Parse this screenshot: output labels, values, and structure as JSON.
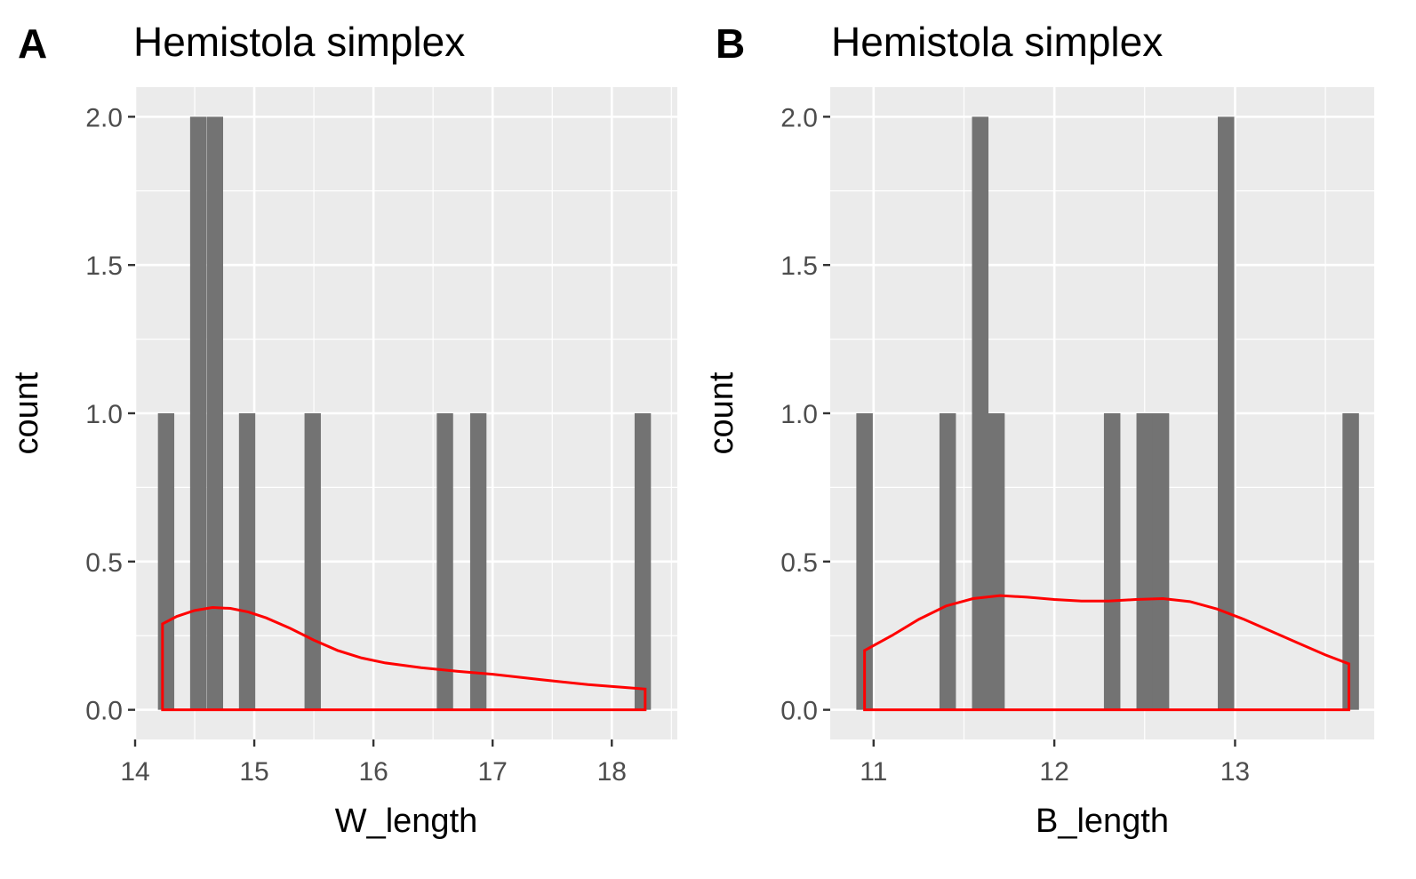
{
  "chart_data": [
    {
      "panel": "A",
      "type": "bar",
      "title": "Hemistola simplex",
      "xlabel": "W_length",
      "ylabel": "count",
      "xlim": [
        14.0,
        18.55
      ],
      "ylim": [
        -0.1,
        2.1
      ],
      "xticks": [
        "14",
        "15",
        "16",
        "17",
        "18"
      ],
      "yticks": [
        "0.0",
        "0.5",
        "1.0",
        "1.5",
        "2.0"
      ],
      "bin_width": 0.137,
      "bins": [
        {
          "x": 14.26,
          "count": 1
        },
        {
          "x": 14.53,
          "count": 2
        },
        {
          "x": 14.67,
          "count": 2
        },
        {
          "x": 14.94,
          "count": 1
        },
        {
          "x": 15.49,
          "count": 1
        },
        {
          "x": 16.6,
          "count": 1
        },
        {
          "x": 16.88,
          "count": 1
        },
        {
          "x": 18.26,
          "count": 1
        }
      ],
      "density": {
        "x": [
          14.23,
          14.35,
          14.5,
          14.65,
          14.8,
          14.95,
          15.1,
          15.3,
          15.5,
          15.7,
          15.9,
          16.1,
          16.4,
          16.7,
          17.0,
          17.4,
          17.8,
          18.28
        ],
        "y": [
          0.29,
          0.315,
          0.335,
          0.345,
          0.342,
          0.33,
          0.31,
          0.275,
          0.235,
          0.2,
          0.175,
          0.158,
          0.142,
          0.13,
          0.12,
          0.102,
          0.085,
          0.07
        ]
      },
      "colors": {
        "bar": "#737373",
        "density": "#ff0000",
        "panel_bg": "#ebebeb",
        "grid": "#ffffff"
      },
      "grid": true
    },
    {
      "panel": "B",
      "type": "bar",
      "title": "Hemistola simplex",
      "xlabel": "B_length",
      "ylabel": "count",
      "xlim": [
        10.76,
        13.77
      ],
      "ylim": [
        -0.1,
        2.1
      ],
      "xticks": [
        "11",
        "12",
        "13"
      ],
      "yticks": [
        "0.0",
        "0.5",
        "1.0",
        "1.5",
        "2.0"
      ],
      "bin_width": 0.091,
      "bins": [
        {
          "x": 10.95,
          "count": 1
        },
        {
          "x": 11.41,
          "count": 1
        },
        {
          "x": 11.59,
          "count": 2
        },
        {
          "x": 11.68,
          "count": 1
        },
        {
          "x": 12.32,
          "count": 1
        },
        {
          "x": 12.5,
          "count": 1
        },
        {
          "x": 12.59,
          "count": 1
        },
        {
          "x": 12.95,
          "count": 2
        },
        {
          "x": 13.64,
          "count": 1
        }
      ],
      "density": {
        "x": [
          10.95,
          11.1,
          11.25,
          11.4,
          11.55,
          11.7,
          11.85,
          12.0,
          12.15,
          12.3,
          12.45,
          12.6,
          12.75,
          12.9,
          13.05,
          13.2,
          13.35,
          13.5,
          13.63
        ],
        "y": [
          0.2,
          0.25,
          0.305,
          0.35,
          0.375,
          0.385,
          0.38,
          0.372,
          0.367,
          0.367,
          0.372,
          0.375,
          0.365,
          0.34,
          0.305,
          0.265,
          0.225,
          0.185,
          0.155
        ]
      },
      "colors": {
        "bar": "#737373",
        "density": "#ff0000",
        "panel_bg": "#ebebeb",
        "grid": "#ffffff"
      },
      "grid": true
    }
  ]
}
